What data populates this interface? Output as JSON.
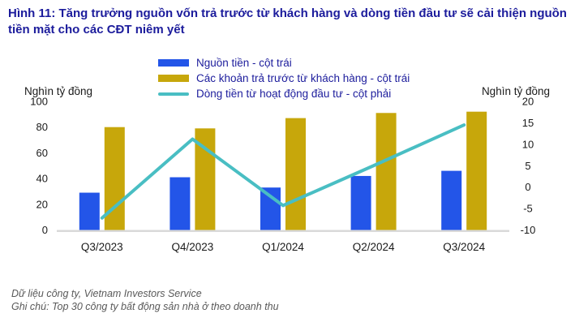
{
  "title": "Hình 11: Tăng trưởng nguồn vốn trả trước từ khách hàng và dòng tiền đầu tư sẽ cải thiện nguồn tiền mặt cho các CĐT niêm yết",
  "axis_units": {
    "left": "Nghìn tỷ đồng",
    "right": "Nghìn tỷ đồng"
  },
  "legend": [
    {
      "key": "nguon-tien",
      "label": "Nguồn tiền - cột trái",
      "swatch": "bar",
      "color": "#2355E8"
    },
    {
      "key": "tra-truoc",
      "label": "Các khoản trả trước từ khách hàng - cột trái",
      "swatch": "bar",
      "color": "#C7A70B"
    },
    {
      "key": "dong-tien-dau-tu",
      "label": "Dòng tiền từ hoạt động đầu tư - cột phải",
      "swatch": "line",
      "color": "#49BEC3"
    }
  ],
  "chart_data": {
    "type": "bar",
    "subtype": "combo-bar-line-dual-axis",
    "categories": [
      "Q3/2023",
      "Q4/2023",
      "Q1/2024",
      "Q2/2024",
      "Q3/2024"
    ],
    "series": [
      {
        "key": "nguon-tien",
        "name": "Nguồn tiền - cột trái",
        "type": "bar",
        "axis": "left",
        "color": "#2355E8",
        "values": [
          29,
          41,
          33,
          42,
          46
        ]
      },
      {
        "key": "tra-truoc",
        "name": "Các khoản trả trước từ khách hàng - cột trái",
        "type": "bar",
        "axis": "left",
        "color": "#C7A70B",
        "values": [
          80,
          79,
          87,
          91,
          92
        ]
      },
      {
        "key": "dong-tien-dau-tu",
        "name": "Dòng tiền từ hoạt động đầu tư - cột phải",
        "type": "line",
        "axis": "right",
        "color": "#49BEC3",
        "values": [
          -7.2,
          11.2,
          -4.3,
          5.0,
          14.5
        ]
      }
    ],
    "left_axis": {
      "label": "Nghìn tỷ đồng",
      "range": [
        0,
        100
      ],
      "ticks": [
        100,
        80,
        60,
        40,
        20,
        0
      ]
    },
    "right_axis": {
      "label": "Nghìn tỷ đồng",
      "range": [
        -10,
        20
      ],
      "ticks": [
        20,
        15,
        10,
        5,
        0,
        -5,
        -10
      ]
    },
    "grid": false,
    "legend_position": "top",
    "title": "Hình 11: Tăng trưởng nguồn vốn trả trước từ khách hàng và dòng tiền đầu tư sẽ cải thiện nguồn tiền mặt cho các CĐT niêm yết"
  },
  "footer": {
    "source": "Dữ liệu công ty, Vietnam Investors Service",
    "note": "Ghi chú: Top 30 công ty bất động sản nhà ở theo doanh thu"
  },
  "colors": {
    "title_text": "#1C1C9C",
    "bar_blue": "#2355E8",
    "bar_gold": "#C7A70B",
    "line_teal": "#49BEC3",
    "axis_line": "#D9D9D9",
    "tick_text": "#1a1a1a",
    "footer_text": "#595959"
  }
}
